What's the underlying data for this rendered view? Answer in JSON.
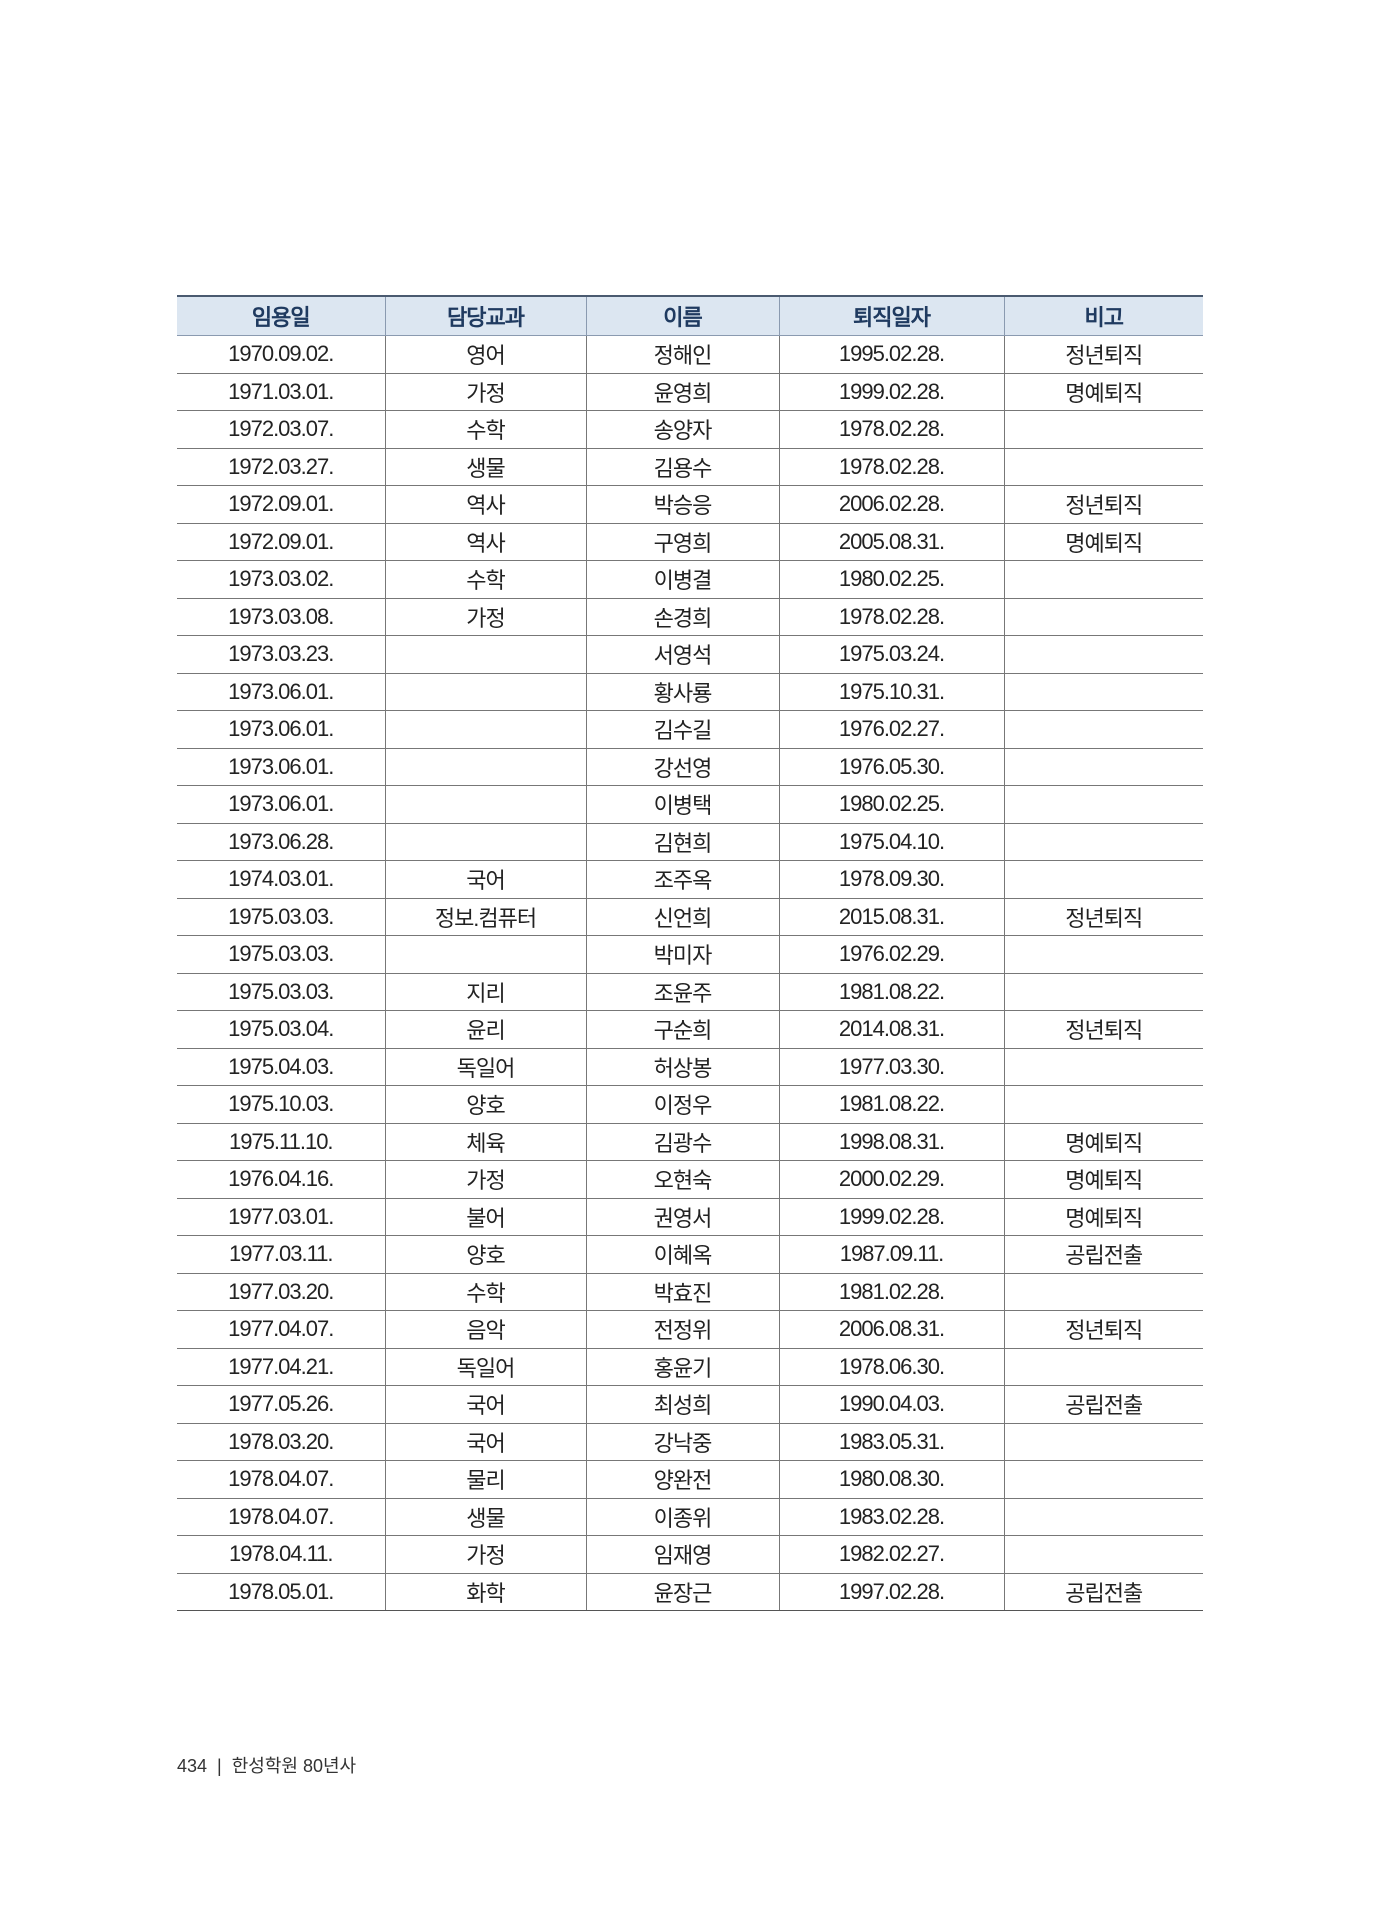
{
  "table": {
    "headers": [
      "임용일",
      "담당교과",
      "이름",
      "퇴직일자",
      "비고"
    ],
    "rows": [
      [
        "1970.09.02.",
        "영어",
        "정해인",
        "1995.02.28.",
        "정년퇴직"
      ],
      [
        "1971.03.01.",
        "가정",
        "윤영희",
        "1999.02.28.",
        "명예퇴직"
      ],
      [
        "1972.03.07.",
        "수학",
        "송양자",
        "1978.02.28.",
        ""
      ],
      [
        "1972.03.27.",
        "생물",
        "김용수",
        "1978.02.28.",
        ""
      ],
      [
        "1972.09.01.",
        "역사",
        "박승응",
        "2006.02.28.",
        "정년퇴직"
      ],
      [
        "1972.09.01.",
        "역사",
        "구영희",
        "2005.08.31.",
        "명예퇴직"
      ],
      [
        "1973.03.02.",
        "수학",
        "이병결",
        "1980.02.25.",
        ""
      ],
      [
        "1973.03.08.",
        "가정",
        "손경희",
        "1978.02.28.",
        ""
      ],
      [
        "1973.03.23.",
        "",
        "서영석",
        "1975.03.24.",
        ""
      ],
      [
        "1973.06.01.",
        "",
        "황사룡",
        "1975.10.31.",
        ""
      ],
      [
        "1973.06.01.",
        "",
        "김수길",
        "1976.02.27.",
        ""
      ],
      [
        "1973.06.01.",
        "",
        "강선영",
        "1976.05.30.",
        ""
      ],
      [
        "1973.06.01.",
        "",
        "이병택",
        "1980.02.25.",
        ""
      ],
      [
        "1973.06.28.",
        "",
        "김현희",
        "1975.04.10.",
        ""
      ],
      [
        "1974.03.01.",
        "국어",
        "조주옥",
        "1978.09.30.",
        ""
      ],
      [
        "1975.03.03.",
        "정보.컴퓨터",
        "신언희",
        "2015.08.31.",
        "정년퇴직"
      ],
      [
        "1975.03.03.",
        "",
        "박미자",
        "1976.02.29.",
        ""
      ],
      [
        "1975.03.03.",
        "지리",
        "조윤주",
        "1981.08.22.",
        ""
      ],
      [
        "1975.03.04.",
        "윤리",
        "구순희",
        "2014.08.31.",
        "정년퇴직"
      ],
      [
        "1975.04.03.",
        "독일어",
        "허상봉",
        "1977.03.30.",
        ""
      ],
      [
        "1975.10.03.",
        "양호",
        "이정우",
        "1981.08.22.",
        ""
      ],
      [
        "1975.11.10.",
        "체육",
        "김광수",
        "1998.08.31.",
        "명예퇴직"
      ],
      [
        "1976.04.16.",
        "가정",
        "오현숙",
        "2000.02.29.",
        "명예퇴직"
      ],
      [
        "1977.03.01.",
        "불어",
        "권영서",
        "1999.02.28.",
        "명예퇴직"
      ],
      [
        "1977.03.11.",
        "양호",
        "이혜옥",
        "1987.09.11.",
        "공립전출"
      ],
      [
        "1977.03.20.",
        "수학",
        "박효진",
        "1981.02.28.",
        ""
      ],
      [
        "1977.04.07.",
        "음악",
        "전정위",
        "2006.08.31.",
        "정년퇴직"
      ],
      [
        "1977.04.21.",
        "독일어",
        "홍윤기",
        "1978.06.30.",
        ""
      ],
      [
        "1977.05.26.",
        "국어",
        "최성희",
        "1990.04.03.",
        "공립전출"
      ],
      [
        "1978.03.20.",
        "국어",
        "강낙중",
        "1983.05.31.",
        ""
      ],
      [
        "1978.04.07.",
        "물리",
        "양완전",
        "1980.08.30.",
        ""
      ],
      [
        "1978.04.07.",
        "생물",
        "이종위",
        "1983.02.28.",
        ""
      ],
      [
        "1978.04.11.",
        "가정",
        "임재영",
        "1982.02.27.",
        ""
      ],
      [
        "1978.05.01.",
        "화학",
        "윤장근",
        "1997.02.28.",
        "공립전출"
      ]
    ]
  },
  "footer": {
    "page_number": "434",
    "separator": "|",
    "book_title": "한성학원 80년사"
  },
  "colors": {
    "header_bg": "#dce6f1",
    "header_text": "#1f3a60"
  }
}
